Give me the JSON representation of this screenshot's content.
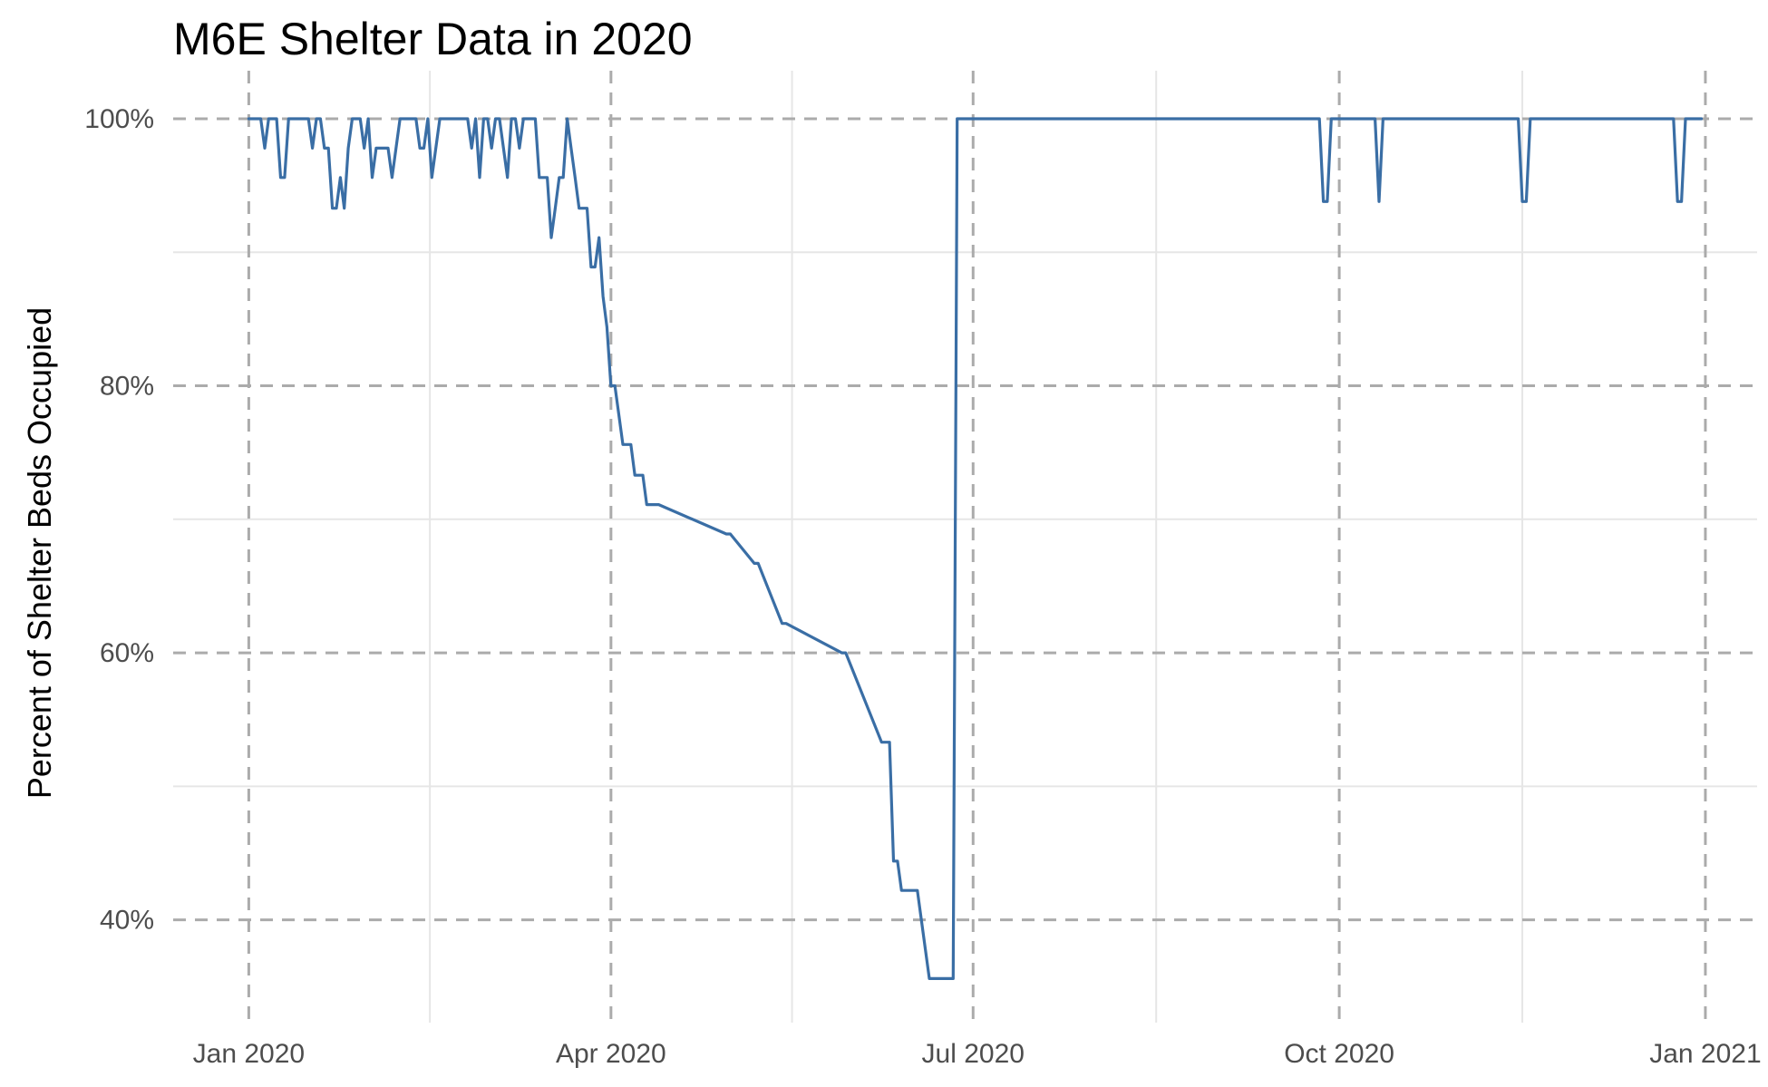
{
  "chart_data": {
    "type": "line",
    "title": "M6E Shelter Data in 2020",
    "xlabel": "",
    "ylabel": "Percent of Shelter Beds Occupied",
    "x_ticks": [
      {
        "label": "Jan 2020",
        "date": "2020-01-01"
      },
      {
        "label": "Apr 2020",
        "date": "2020-04-01"
      },
      {
        "label": "Jul 2020",
        "date": "2020-07-01"
      },
      {
        "label": "Oct 2020",
        "date": "2020-10-01"
      },
      {
        "label": "Jan 2021",
        "date": "2021-01-01"
      }
    ],
    "y_ticks": [
      {
        "label": "40%",
        "value": 40
      },
      {
        "label": "60%",
        "value": 60
      },
      {
        "label": "80%",
        "value": 80
      },
      {
        "label": "100%",
        "value": 100
      }
    ],
    "xlim": [
      "2019-12-13",
      "2021-01-14"
    ],
    "ylim": [
      32.3,
      103.6
    ],
    "line_color": "#3a6ea5",
    "grid": true,
    "series": [
      {
        "x": [
          "2020-01-01",
          "2020-01-04",
          "2020-01-05",
          "2020-01-06",
          "2020-01-07",
          "2020-01-08",
          "2020-01-09",
          "2020-01-10",
          "2020-01-11",
          "2020-01-12",
          "2020-01-13",
          "2020-01-14",
          "2020-01-15",
          "2020-01-16",
          "2020-01-17",
          "2020-01-18",
          "2020-01-19",
          "2020-01-20",
          "2020-01-21",
          "2020-01-22",
          "2020-01-23",
          "2020-01-24",
          "2020-01-25",
          "2020-01-26",
          "2020-01-27",
          "2020-01-28",
          "2020-01-29",
          "2020-01-30",
          "2020-01-31",
          "2020-02-01",
          "2020-02-02",
          "2020-02-03",
          "2020-02-04",
          "2020-02-05",
          "2020-02-06",
          "2020-02-07",
          "2020-02-08",
          "2020-02-09",
          "2020-02-10",
          "2020-02-11",
          "2020-02-12",
          "2020-02-13",
          "2020-02-14",
          "2020-02-15",
          "2020-02-16",
          "2020-02-17",
          "2020-02-18",
          "2020-02-19",
          "2020-02-20",
          "2020-02-21",
          "2020-02-22",
          "2020-02-25",
          "2020-02-26",
          "2020-02-27",
          "2020-02-28",
          "2020-02-29",
          "2020-03-01",
          "2020-03-02",
          "2020-03-03",
          "2020-03-04",
          "2020-03-05",
          "2020-03-06",
          "2020-03-07",
          "2020-03-08",
          "2020-03-09",
          "2020-03-10",
          "2020-03-11",
          "2020-03-12",
          "2020-03-13",
          "2020-03-14",
          "2020-03-15",
          "2020-03-16",
          "2020-03-17",
          "2020-03-18",
          "2020-03-19",
          "2020-03-20",
          "2020-03-21",
          "2020-03-22",
          "2020-03-23",
          "2020-03-24",
          "2020-03-25",
          "2020-03-26",
          "2020-03-27",
          "2020-03-28",
          "2020-03-29",
          "2020-03-30",
          "2020-03-31",
          "2020-04-01",
          "2020-04-02",
          "2020-04-03",
          "2020-04-04",
          "2020-04-06",
          "2020-04-07",
          "2020-04-08",
          "2020-04-09",
          "2020-04-10",
          "2020-04-11",
          "2020-04-12",
          "2020-04-13",
          "2020-04-30",
          "2020-05-01",
          "2020-05-07",
          "2020-05-08",
          "2020-05-14",
          "2020-05-15",
          "2020-05-29",
          "2020-05-30",
          "2020-06-08",
          "2020-06-09",
          "2020-06-10",
          "2020-06-11",
          "2020-06-12",
          "2020-06-13",
          "2020-06-16",
          "2020-06-17",
          "2020-06-18",
          "2020-06-19",
          "2020-06-20",
          "2020-06-26",
          "2020-06-27",
          "2020-09-26",
          "2020-09-27",
          "2020-09-28",
          "2020-09-29",
          "2020-10-10",
          "2020-10-11",
          "2020-10-12",
          "2020-11-15",
          "2020-11-16",
          "2020-11-17",
          "2020-11-18",
          "2020-12-24",
          "2020-12-25",
          "2020-12-26",
          "2020-12-27",
          "2020-12-31"
        ],
        "y": [
          100,
          100,
          97.8,
          100,
          100,
          100,
          95.6,
          95.6,
          100,
          100,
          100,
          100,
          100,
          100,
          97.8,
          100,
          100,
          97.8,
          97.8,
          93.3,
          93.3,
          95.6,
          93.3,
          97.8,
          100,
          100,
          100,
          97.8,
          100,
          95.6,
          97.8,
          97.8,
          97.8,
          97.8,
          95.6,
          97.8,
          100,
          100,
          100,
          100,
          100,
          97.8,
          97.8,
          100,
          95.6,
          97.8,
          100,
          100,
          100,
          100,
          100,
          100,
          97.8,
          100,
          95.6,
          100,
          100,
          97.8,
          100,
          100,
          97.8,
          95.6,
          100,
          100,
          97.8,
          100,
          100,
          100,
          100,
          95.6,
          95.6,
          95.6,
          91.1,
          93.3,
          95.6,
          95.6,
          100,
          97.8,
          95.6,
          93.3,
          93.3,
          93.3,
          88.9,
          88.9,
          91.1,
          86.7,
          84.4,
          80,
          80,
          77.8,
          75.6,
          75.6,
          73.3,
          73.3,
          73.3,
          71.1,
          71.1,
          71.1,
          71.1,
          68.9,
          68.9,
          66.7,
          66.7,
          62.2,
          62.2,
          60,
          60,
          53.3,
          53.3,
          53.3,
          44.4,
          44.4,
          42.2,
          42.2,
          42.2,
          40,
          37.8,
          35.6,
          35.6,
          100,
          100,
          93.8,
          93.8,
          100,
          100,
          93.8,
          100,
          100,
          93.8,
          93.8,
          100,
          100,
          93.8,
          93.8,
          100,
          100
        ]
      }
    ]
  }
}
